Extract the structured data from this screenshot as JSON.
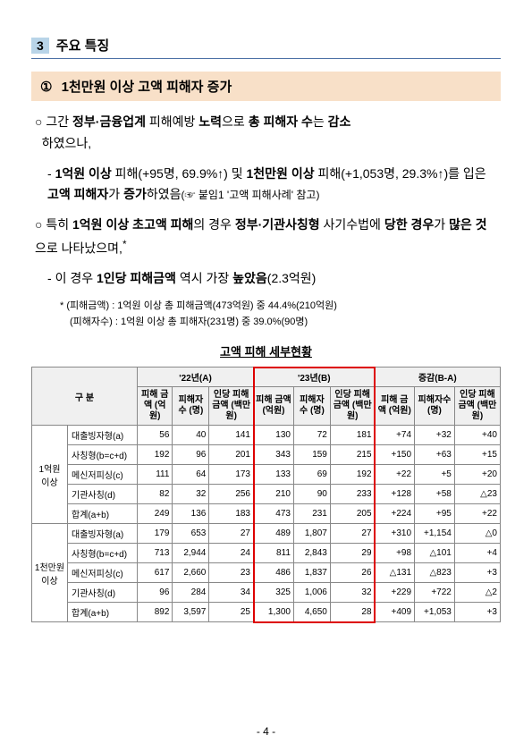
{
  "section": {
    "num": "3",
    "title": "주요 특징"
  },
  "sub": {
    "num": "①",
    "title": "1천만원 이상 고액 피해자 증가"
  },
  "para1": {
    "circle": "○",
    "t1": "그간 ",
    "b1": "정부·금융업계",
    "t2": " 피해예방 ",
    "b2": "노력",
    "t3": "으로 ",
    "b3": "총 피해자 수",
    "t4": "는 ",
    "b4": "감소",
    "t5": "하였으나,"
  },
  "para2": {
    "dash": "-",
    "b1": "1억원 이상",
    "t1": " 피해(+95명, 69.9%↑) 및 ",
    "b2": "1천만원 이상",
    "t2": " 피해(+1,053명, 29.3%↑)를 입은 ",
    "b3": "고액 피해자",
    "t3": "가 ",
    "b4": "증가",
    "t4": "하였음",
    "sm": "(☞ 붙임1 '고액 피해사례' 참고)"
  },
  "para3": {
    "circle": "○",
    "t1": "특히 ",
    "b1": "1억원 이상 초고액 피해",
    "t2": "의 경우 ",
    "b2": "정부·기관사칭형",
    "t3": " 사기수법에 ",
    "b3": "당한 경우",
    "t4": "가 ",
    "b4": "많은 것",
    "t5": "으로 나타났으며,",
    "sup": "*"
  },
  "para4": {
    "dash": "-",
    "t1": "이 경우 ",
    "b1": "1인당 피해금액",
    "t2": " 역시 가장 ",
    "b2": "높았음",
    "t3": "(2.3억원)"
  },
  "footnote": {
    "l1": "* (피해금액) : 1억원 이상 총 피해금액(473억원) 중 44.4%(210억원)",
    "l2": "(피해자수) : 1억원 이상 총 피해자(231명) 중 39.0%(90명)"
  },
  "table_title": "고액 피해 세부현황",
  "headers": {
    "gubun": "구 분",
    "y22": "'22년(A)",
    "y23": "'23년(B)",
    "diff": "증감(B-A)",
    "amt": "피해\n금액\n(억원)",
    "cnt": "피해자수\n(명)",
    "per": "인당\n피해\n금액\n(백만원)"
  },
  "groups": [
    {
      "name": "1억원\n이상",
      "rows": [
        {
          "label": "대출빙자형(a)",
          "a": [
            "56",
            "40",
            "141"
          ],
          "b": [
            "130",
            "72",
            "181"
          ],
          "d": [
            "+74",
            "+32",
            "+40"
          ]
        },
        {
          "label": "사칭형(b=c+d)",
          "a": [
            "192",
            "96",
            "201"
          ],
          "b": [
            "343",
            "159",
            "215"
          ],
          "d": [
            "+150",
            "+63",
            "+15"
          ]
        },
        {
          "label": "메신저피싱(c)",
          "a": [
            "111",
            "64",
            "173"
          ],
          "b": [
            "133",
            "69",
            "192"
          ],
          "d": [
            "+22",
            "+5",
            "+20"
          ]
        },
        {
          "label": "기관사칭(d)",
          "a": [
            "82",
            "32",
            "256"
          ],
          "b": [
            "210",
            "90",
            "233"
          ],
          "d": [
            "+128",
            "+58",
            "△23"
          ]
        },
        {
          "label": "합계(a+b)",
          "a": [
            "249",
            "136",
            "183"
          ],
          "b": [
            "473",
            "231",
            "205"
          ],
          "d": [
            "+224",
            "+95",
            "+22"
          ]
        }
      ]
    },
    {
      "name": "1천만원\n이상",
      "rows": [
        {
          "label": "대출빙자형(a)",
          "a": [
            "179",
            "653",
            "27"
          ],
          "b": [
            "489",
            "1,807",
            "27"
          ],
          "d": [
            "+310",
            "+1,154",
            "△0"
          ]
        },
        {
          "label": "사칭형(b=c+d)",
          "a": [
            "713",
            "2,944",
            "24"
          ],
          "b": [
            "811",
            "2,843",
            "29"
          ],
          "d": [
            "+98",
            "△101",
            "+4"
          ]
        },
        {
          "label": "메신저피싱(c)",
          "a": [
            "617",
            "2,660",
            "23"
          ],
          "b": [
            "486",
            "1,837",
            "26"
          ],
          "d": [
            "△131",
            "△823",
            "+3"
          ]
        },
        {
          "label": "기관사칭(d)",
          "a": [
            "96",
            "284",
            "34"
          ],
          "b": [
            "325",
            "1,006",
            "32"
          ],
          "d": [
            "+229",
            "+722",
            "△2"
          ]
        },
        {
          "label": "합계(a+b)",
          "a": [
            "892",
            "3,597",
            "25"
          ],
          "b": [
            "1,300",
            "4,650",
            "28"
          ],
          "d": [
            "+409",
            "+1,053",
            "+3"
          ]
        }
      ]
    }
  ],
  "page": "- 4 -"
}
